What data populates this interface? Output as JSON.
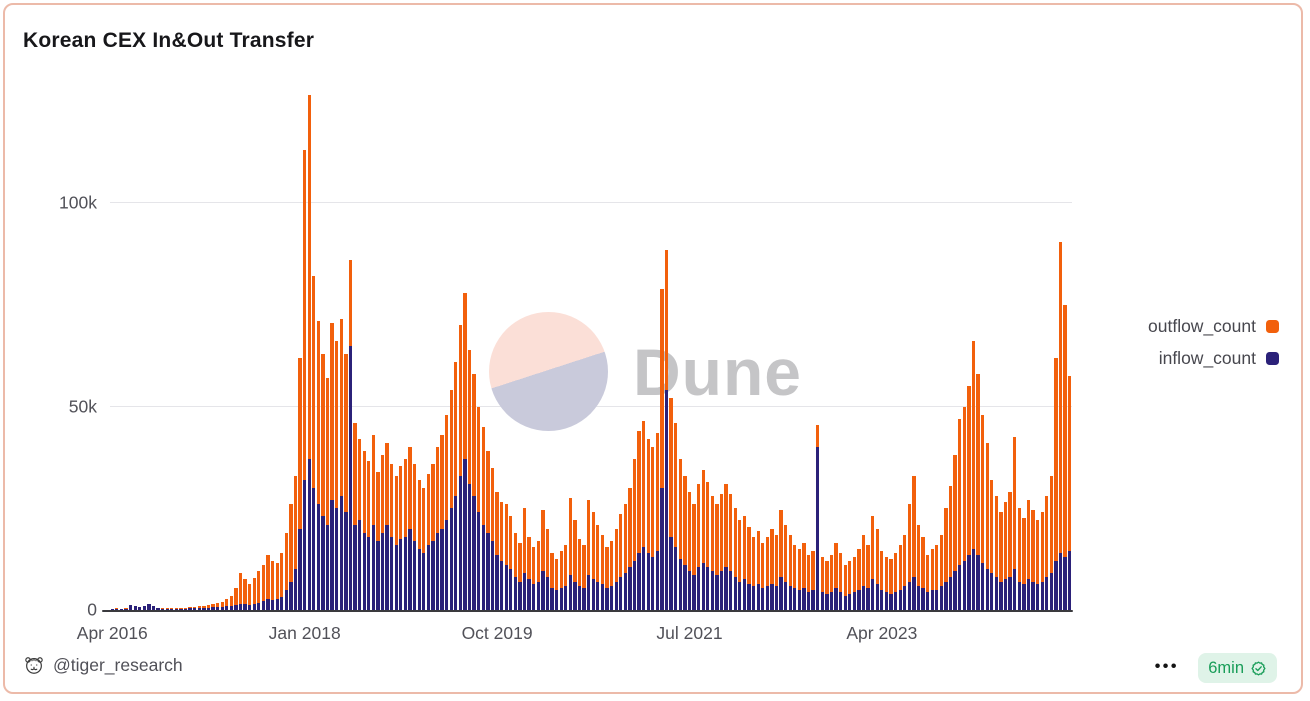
{
  "card": {
    "title": "Korean CEX In&Out Transfer"
  },
  "legend": {
    "items": [
      {
        "label": "outflow_count",
        "color": "#f2600c"
      },
      {
        "label": "inflow_count",
        "color": "#2b2179"
      }
    ]
  },
  "watermark": {
    "text": "Dune"
  },
  "footer": {
    "author": "@tiger_research",
    "menu": "•••",
    "badge_label": "6min"
  },
  "colors": {
    "card_border": "#ecbaa9",
    "outflow": "#f2600c",
    "inflow": "#2b2179",
    "gridline": "#e5e5e9",
    "axis_text": "#515158",
    "badge_bg": "#dff3e8",
    "badge_text": "#189d58",
    "watermark_text": "#c5c5c7",
    "watermark_pink": "#fbdfd7",
    "watermark_lavender": "#c9cadb"
  },
  "chart_data": {
    "type": "bar",
    "title": "Korean CEX In&Out Transfer",
    "xlabel": "",
    "ylabel": "",
    "value_unit": "k",
    "ylim": [
      0,
      130
    ],
    "grid": "horizontal",
    "legend_position": "right",
    "bar_style": "overlaid",
    "x_start": "Apr 2016",
    "x_end": "Dec 2024",
    "points_per_month": 2,
    "y_ticks": [
      {
        "value": 0,
        "label": "0"
      },
      {
        "value": 50,
        "label": "50k"
      },
      {
        "value": 100,
        "label": "100k"
      }
    ],
    "x_ticks": [
      {
        "index": 0,
        "label": "Apr 2016"
      },
      {
        "index": 42,
        "label": "Jan 2018"
      },
      {
        "index": 84,
        "label": "Oct 2019"
      },
      {
        "index": 126,
        "label": "Jul 2021"
      },
      {
        "index": 168,
        "label": "Apr 2023"
      }
    ],
    "series": [
      {
        "name": "outflow_count",
        "color": "#f2600c",
        "values": [
          0.3,
          0.4,
          0.3,
          0.5,
          0.9,
          0.7,
          0.6,
          0.8,
          1.0,
          0.8,
          0.5,
          0.4,
          0.4,
          0.5,
          0.5,
          0.4,
          0.5,
          0.7,
          0.8,
          0.9,
          1.0,
          1.2,
          1.4,
          1.7,
          2.0,
          2.6,
          3.5,
          5.5,
          9.2,
          7.5,
          6.5,
          7.8,
          9.5,
          11.0,
          13.5,
          12.0,
          11.5,
          14.0,
          19.0,
          26.0,
          33.0,
          62.0,
          113.0,
          126.5,
          82.0,
          71.0,
          63.0,
          57.0,
          70.5,
          66.0,
          71.5,
          63.0,
          86.0,
          46.0,
          42.0,
          39.0,
          36.5,
          43.0,
          34.0,
          38.0,
          41.0,
          36.0,
          33.0,
          35.5,
          37.0,
          40.0,
          36.0,
          32.0,
          30.0,
          33.5,
          36.0,
          40.0,
          43.0,
          48.0,
          54.0,
          61.0,
          70.0,
          78.0,
          64.0,
          58.0,
          50.0,
          45.0,
          39.0,
          35.0,
          29.0,
          26.5,
          26.0,
          23.0,
          19.0,
          16.5,
          25.0,
          18.0,
          15.5,
          17.0,
          24.5,
          20.0,
          14.0,
          12.5,
          14.5,
          16.0,
          27.5,
          22.0,
          17.5,
          16.0,
          27.0,
          24.0,
          21.0,
          18.5,
          15.5,
          17.0,
          20.0,
          23.5,
          26.0,
          30.0,
          37.0,
          44.0,
          46.5,
          42.0,
          40.0,
          43.5,
          79.0,
          88.5,
          52.0,
          46.0,
          37.0,
          33.0,
          29.0,
          26.0,
          31.0,
          34.5,
          31.5,
          28.0,
          26.0,
          28.5,
          31.0,
          28.5,
          25.0,
          22.0,
          23.0,
          20.5,
          18.0,
          19.5,
          16.5,
          18.0,
          20.0,
          18.5,
          24.5,
          21.0,
          18.5,
          16.0,
          15.0,
          16.5,
          13.5,
          14.5,
          45.5,
          13.0,
          12.0,
          13.5,
          16.5,
          14.0,
          11.0,
          12.0,
          13.0,
          15.0,
          18.5,
          16.0,
          23.0,
          20.0,
          14.5,
          13.0,
          12.5,
          14.0,
          16.0,
          18.5,
          26.0,
          33.0,
          21.0,
          18.0,
          13.5,
          15.0,
          16.0,
          18.5,
          25.0,
          30.5,
          38.0,
          47.0,
          50.0,
          55.0,
          66.0,
          58.0,
          48.0,
          41.0,
          32.0,
          28.0,
          24.0,
          26.5,
          29.0,
          42.5,
          25.0,
          22.5,
          27.0,
          24.5,
          22.0,
          24.0,
          28.0,
          33.0,
          62.0,
          90.5,
          75.0,
          57.5
        ]
      },
      {
        "name": "inflow_count",
        "color": "#2b2179",
        "values": [
          0.2,
          0.2,
          0.2,
          0.3,
          1.3,
          1.0,
          0.8,
          1.1,
          1.5,
          1.1,
          0.4,
          0.3,
          0.3,
          0.3,
          0.3,
          0.3,
          0.3,
          0.4,
          0.4,
          0.5,
          0.5,
          0.6,
          0.7,
          0.8,
          0.8,
          1.0,
          1.0,
          1.2,
          1.5,
          1.4,
          1.3,
          1.6,
          1.8,
          2.2,
          2.6,
          2.4,
          2.8,
          3.3,
          5.0,
          7.0,
          10.0,
          20.0,
          32.0,
          37.0,
          30.0,
          26.0,
          23.0,
          21.0,
          27.0,
          25.0,
          28.0,
          24.0,
          65.0,
          21.0,
          22.0,
          19.0,
          18.0,
          21.0,
          17.0,
          19.0,
          21.0,
          18.0,
          16.0,
          17.5,
          18.0,
          20.0,
          17.0,
          15.0,
          14.0,
          16.0,
          17.0,
          19.0,
          20.0,
          22.0,
          25.0,
          28.0,
          33.0,
          37.0,
          31.0,
          28.0,
          24.0,
          21.0,
          19.0,
          17.0,
          13.5,
          12.0,
          11.0,
          10.0,
          8.0,
          7.0,
          9.0,
          7.5,
          6.5,
          7.0,
          9.5,
          8.0,
          5.5,
          5.0,
          5.5,
          6.0,
          8.5,
          7.0,
          6.0,
          5.5,
          8.5,
          7.5,
          7.0,
          6.5,
          5.5,
          6.0,
          7.0,
          8.0,
          9.0,
          10.5,
          12.0,
          14.0,
          15.5,
          14.0,
          13.0,
          14.5,
          30.0,
          54.0,
          18.0,
          15.5,
          12.5,
          11.0,
          9.5,
          8.5,
          10.5,
          11.5,
          10.5,
          9.5,
          8.5,
          9.5,
          10.5,
          9.5,
          8.0,
          7.0,
          7.5,
          6.5,
          6.0,
          6.5,
          5.5,
          6.0,
          6.5,
          6.0,
          8.0,
          7.0,
          6.0,
          5.5,
          5.0,
          5.5,
          4.5,
          5.0,
          40.0,
          4.5,
          4.0,
          4.5,
          5.5,
          4.5,
          3.5,
          4.0,
          4.5,
          5.0,
          6.0,
          5.5,
          7.5,
          6.5,
          5.0,
          4.5,
          4.0,
          4.5,
          5.0,
          6.0,
          7.0,
          8.0,
          6.0,
          5.5,
          4.5,
          5.0,
          5.0,
          6.0,
          7.0,
          8.0,
          9.5,
          11.0,
          12.0,
          13.5,
          15.0,
          13.5,
          11.5,
          10.0,
          9.0,
          8.0,
          7.0,
          7.5,
          8.0,
          10.0,
          7.0,
          6.5,
          7.5,
          7.0,
          6.5,
          7.0,
          8.0,
          9.0,
          12.0,
          14.0,
          13.0,
          14.5
        ]
      }
    ]
  }
}
